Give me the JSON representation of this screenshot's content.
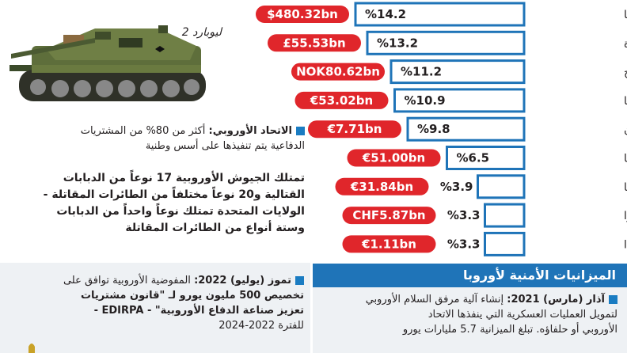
{
  "chart_data": {
    "type": "bar",
    "orientation": "horizontal",
    "categories": [
      "أوروبا",
      "المملكة المتحدة",
      "النرويج",
      "ألمانيا",
      "اليونان",
      "فرنسا",
      "إيطاليا",
      "سويسرا",
      "إيرلندا"
    ],
    "values": [
      14.2,
      13.2,
      11.2,
      10.9,
      9.8,
      6.5,
      3.9,
      3.3,
      3.3
    ],
    "value_labels": [
      "%14.2",
      "%13.2",
      "%11.2",
      "%10.9",
      "%9.8",
      "%6.5",
      "%3.9",
      "%3.3",
      "%3.3"
    ],
    "budgets": [
      "$480.32bn",
      "£55.53bn",
      "NOK80.62bn",
      "€53.02bn",
      "€7.71bn",
      "€51.00bn",
      "€31.84bn",
      "CHF5.87bn",
      "€1.11bn"
    ],
    "colors": {
      "bar_fill": "#ffffff",
      "bar_border": "#1f74b8",
      "budget_pill": "#e0262b"
    }
  },
  "tank_caption": "ليوبارد 2",
  "eu_note": {
    "heading": "الاتحاد الأوروبي:",
    "line1": "أكثر من 80% من المشتريات",
    "line2": "الدفاعية يتم تنفيذها على أسس وطنية"
  },
  "armies_note": [
    "تمتلك الجيوش الأوروبية 17 نوعاً من الدبابات",
    "القتالية و20 نوعاً مختلفاً من الطائرات المقاتلة -",
    "الولايات المتحدة تمتلك نوعاً واحداً من الدبابات",
    "وستة أنواع من الطائرات المقاتلة"
  ],
  "banner_title": "الميزانيات الأمنية لأوروبا",
  "july_note": {
    "heading": "تموز (يوليو) 2022:",
    "line1": "المفوضية الأوروبية توافق على",
    "line2": "تخصيص 500 مليون يورو لـ \"قانون مشتريات",
    "line3": "تعزيز صناعة الدفاع الأوروبية\" - EDIRPA -",
    "line4": "للفترة 2022-2024"
  },
  "march_note": {
    "heading": "آذار (مارس) 2021:",
    "line1": "إنشاء آلية مرفق السلام الأوروبي",
    "line2": "لتمويل العمليات العسكرية التي ينفذها الاتحاد",
    "line3": "الأوروبي أو حلفاؤه. تبلغ الميزانية 5.7 مليارات يورو"
  }
}
